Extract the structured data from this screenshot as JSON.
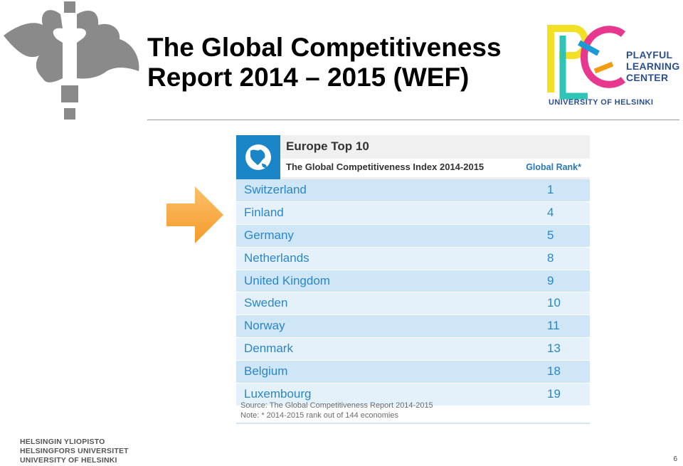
{
  "slide": {
    "title_line1": "The Global Competitiveness",
    "title_line2": "Report 2014 – 2015 (WEF)",
    "page_number": "6"
  },
  "logo": {
    "plc_line1": "PLAYFUL",
    "plc_line2": "LEARNING",
    "plc_line3": "CENTER",
    "plc_university": "UNIVERSITY OF HELSINKI"
  },
  "footer": {
    "line1": "HELSINGIN YLIOPISTO",
    "line2": "HELSINGFORS UNIVERSITET",
    "line3": "UNIVERSITY OF HELSINKI"
  },
  "table": {
    "heading": "Europe Top 10",
    "index_label": "The Global Competitiveness Index 2014-2015",
    "rank_label": "Global Rank*",
    "rows": [
      {
        "country": "Switzerland",
        "rank": "1"
      },
      {
        "country": "Finland",
        "rank": "4"
      },
      {
        "country": "Germany",
        "rank": "5"
      },
      {
        "country": "Netherlands",
        "rank": "8"
      },
      {
        "country": "United Kingdom",
        "rank": "9"
      },
      {
        "country": "Sweden",
        "rank": "10"
      },
      {
        "country": "Norway",
        "rank": "11"
      },
      {
        "country": "Denmark",
        "rank": "13"
      },
      {
        "country": "Belgium",
        "rank": "18"
      },
      {
        "country": "Luxembourg",
        "rank": "19"
      }
    ],
    "source": "Source: The Global Competitiveness Report 2014-2015",
    "note": "Note: * 2014-2015 rank out of 144 economies"
  },
  "colors": {
    "table_blue": "#2a86c8",
    "arrow_orange": "#f9a43a"
  }
}
